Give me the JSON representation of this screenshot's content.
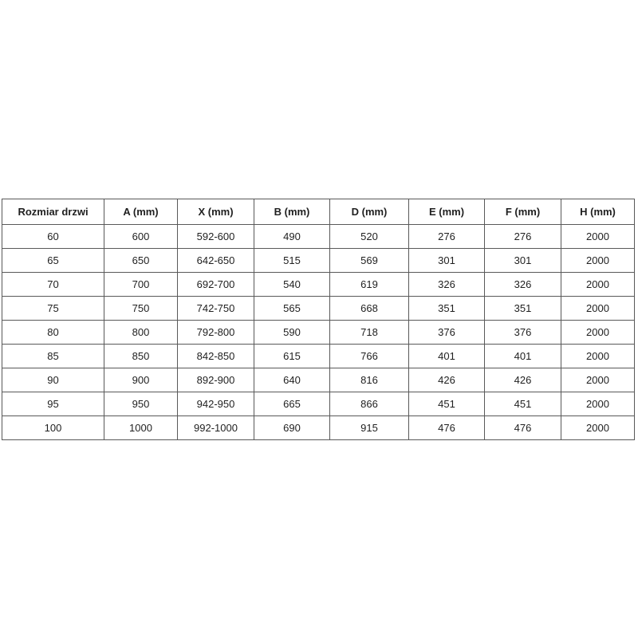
{
  "colors": {
    "background": "#ffffff",
    "border": "#595959",
    "text": "#1f1f1f"
  },
  "table": {
    "headers": [
      "Rozmiar drzwi",
      "A (mm)",
      "X (mm)",
      "B (mm)",
      "D (mm)",
      "E (mm)",
      "F (mm)",
      "H (mm)"
    ],
    "rows": [
      [
        "60",
        "600",
        "592-600",
        "490",
        "520",
        "276",
        "276",
        "2000"
      ],
      [
        "65",
        "650",
        "642-650",
        "515",
        "569",
        "301",
        "301",
        "2000"
      ],
      [
        "70",
        "700",
        "692-700",
        "540",
        "619",
        "326",
        "326",
        "2000"
      ],
      [
        "75",
        "750",
        "742-750",
        "565",
        "668",
        "351",
        "351",
        "2000"
      ],
      [
        "80",
        "800",
        "792-800",
        "590",
        "718",
        "376",
        "376",
        "2000"
      ],
      [
        "85",
        "850",
        "842-850",
        "615",
        "766",
        "401",
        "401",
        "2000"
      ],
      [
        "90",
        "900",
        "892-900",
        "640",
        "816",
        "426",
        "426",
        "2000"
      ],
      [
        "95",
        "950",
        "942-950",
        "665",
        "866",
        "451",
        "451",
        "2000"
      ],
      [
        "100",
        "1000",
        "992-1000",
        "690",
        "915",
        "476",
        "476",
        "2000"
      ]
    ]
  }
}
